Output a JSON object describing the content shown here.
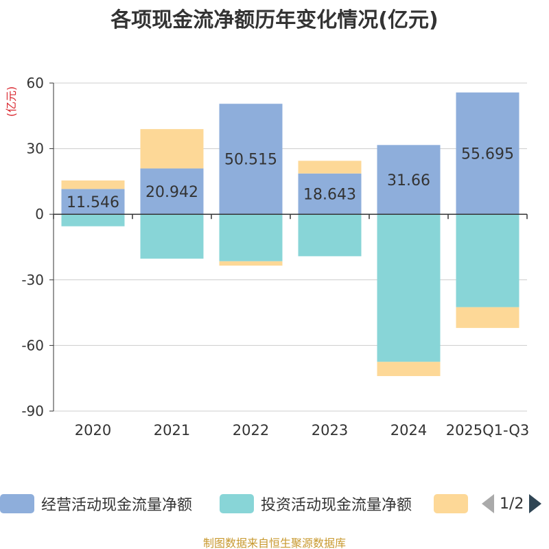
{
  "title": "各项现金流净额历年变化情况(亿元)",
  "colors": {
    "operating": "#8eaedb",
    "investing": "#88d5d7",
    "financing": "#fdd897",
    "y_unit": "#d9262e",
    "axis": "#333333",
    "grid": "#cccccc",
    "pager_active": "#2f4554",
    "pager_inactive": "#aaaaaa",
    "source": "#c8992f"
  },
  "chart_data": {
    "type": "bar",
    "stacked": true,
    "title": "各项现金流净额历年变化情况(亿元)",
    "y_unit": "(亿元)",
    "ylim": [
      -90,
      60
    ],
    "yticks": [
      60,
      30,
      0,
      -30,
      -60,
      -90
    ],
    "grid": true,
    "categories": [
      "2020",
      "2021",
      "2022",
      "2023",
      "2024",
      "2025Q1-Q3"
    ],
    "series": [
      {
        "name": "经营活动现金流量净额",
        "color_key": "operating",
        "values": [
          11.546,
          20.942,
          50.515,
          18.643,
          31.66,
          55.695
        ],
        "labels": [
          "11.546",
          "20.942",
          "50.515",
          "18.643",
          "31.66",
          "55.695"
        ]
      },
      {
        "name": "投资活动现金流量净额",
        "color_key": "investing",
        "values": [
          -5.5,
          -20.3,
          -21.5,
          -19.2,
          -67.5,
          -42.5
        ]
      },
      {
        "name": "",
        "color_key": "financing",
        "values": [
          3.9,
          18.0,
          -2.0,
          5.8,
          -6.5,
          -9.5
        ]
      }
    ]
  },
  "legend": {
    "items": [
      {
        "label": "经营活动现金流量净额",
        "color_key": "operating"
      },
      {
        "label": "投资活动现金流量净额",
        "color_key": "investing"
      },
      {
        "label": "",
        "color_key": "financing"
      }
    ],
    "page_indicator": "1/2"
  },
  "source": "制图数据来自恒生聚源数据库"
}
